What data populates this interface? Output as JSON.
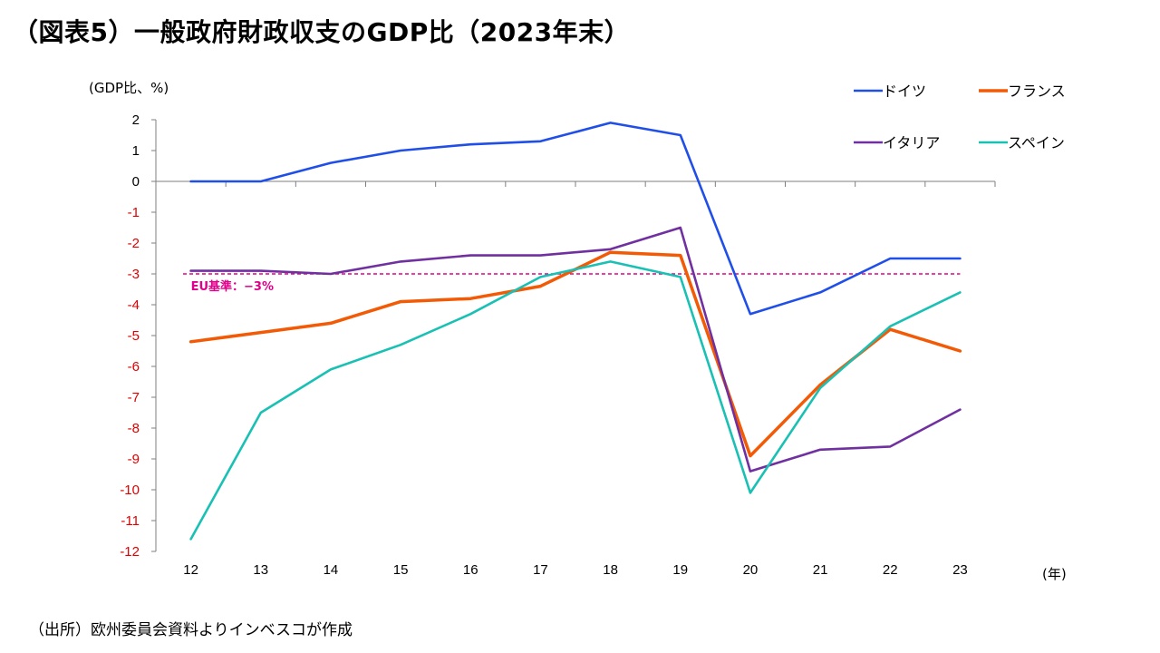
{
  "title": "（図表5）一般政府財政収支のGDP比（2023年末）",
  "y_unit_label": "(GDP比、%)",
  "x_unit_label": "(年)",
  "source": "（出所）欧州委員会資料よりインベスコが作成",
  "chart_data": {
    "type": "line",
    "title": "（図表5）一般政府財政収支のGDP比（2023年末）",
    "xlabel": "(年)",
    "ylabel": "(GDP比、%)",
    "categories": [
      "12",
      "13",
      "14",
      "15",
      "16",
      "17",
      "18",
      "19",
      "20",
      "21",
      "22",
      "23"
    ],
    "ylim": [
      -12,
      2
    ],
    "yticks": [
      "2",
      "1",
      "0",
      "-1",
      "-2",
      "-3",
      "-4",
      "-5",
      "-6",
      "-7",
      "-8",
      "-9",
      "-10",
      "-11",
      "-12"
    ],
    "grid": false,
    "legend_position": "top-right",
    "series": [
      {
        "name": "ドイツ",
        "color": "#1f4fe8",
        "values": [
          0.0,
          0.0,
          0.6,
          1.0,
          1.2,
          1.3,
          1.9,
          1.5,
          -4.3,
          -3.6,
          -2.5,
          -2.5
        ]
      },
      {
        "name": "フランス",
        "color": "#f25a06",
        "values": [
          -5.2,
          -4.9,
          -4.6,
          -3.9,
          -3.8,
          -3.4,
          -2.3,
          -2.4,
          -8.9,
          -6.6,
          -4.8,
          -5.5
        ]
      },
      {
        "name": "イタリア",
        "color": "#7030a0",
        "values": [
          -2.9,
          -2.9,
          -3.0,
          -2.6,
          -2.4,
          -2.4,
          -2.2,
          -1.5,
          -9.4,
          -8.7,
          -8.6,
          -7.4
        ]
      },
      {
        "name": "スペイン",
        "color": "#19c0b4",
        "values": [
          -11.6,
          -7.5,
          -6.1,
          -5.3,
          -4.3,
          -3.1,
          -2.6,
          -3.1,
          -10.1,
          -6.7,
          -4.7,
          -3.6
        ]
      }
    ],
    "reference_line": {
      "value": -3,
      "label": "EU基準：−3%",
      "color": "#e0008a"
    }
  }
}
